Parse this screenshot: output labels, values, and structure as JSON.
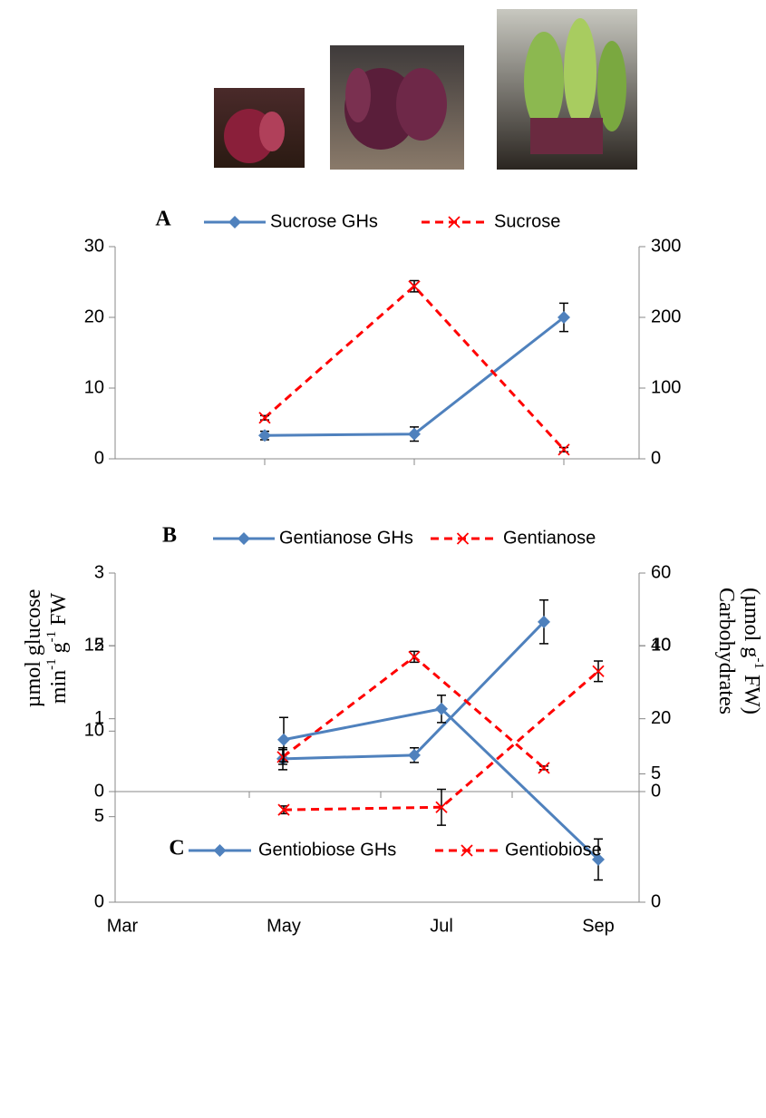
{
  "chart_data": [
    {
      "type": "line",
      "panel_label": "A",
      "categories": [
        null,
        null,
        null,
        null
      ],
      "series": [
        {
          "name": "Sucrose GHs",
          "color": "#4f81bd",
          "marker": "diamond",
          "line_style": "solid",
          "axis": "y",
          "values": [
            null,
            3.3,
            3.5,
            20
          ],
          "errors": [
            null,
            0.6,
            1.0,
            2.0
          ]
        },
        {
          "name": "Sucrose",
          "color": "#ff0000",
          "marker": "x",
          "line_style": "dashed",
          "axis": "y2",
          "values": [
            null,
            58,
            244,
            13
          ],
          "errors": [
            null,
            3,
            8,
            3
          ]
        }
      ],
      "ylim": [
        0,
        30
      ],
      "yticks": [
        0,
        10,
        20,
        30
      ],
      "y2lim": [
        0,
        300
      ],
      "y2ticks": [
        0,
        100,
        200,
        300
      ]
    },
    {
      "type": "line",
      "panel_label": "B",
      "categories": [
        null,
        null,
        null,
        null
      ],
      "series": [
        {
          "name": "Gentianose GHs",
          "color": "#4f81bd",
          "marker": "diamond",
          "line_style": "solid",
          "axis": "y",
          "values": [
            null,
            0.45,
            0.5,
            2.33
          ],
          "errors": [
            null,
            0.15,
            0.1,
            0.3
          ]
        },
        {
          "name": "Gentianose",
          "color": "#ff0000",
          "marker": "x",
          "line_style": "dashed",
          "axis": "y2",
          "values": [
            null,
            9.5,
            37,
            6.5
          ],
          "errors": [
            null,
            2,
            1.5,
            0.5
          ]
        }
      ],
      "ylim": [
        0,
        3
      ],
      "yticks": [
        0,
        1,
        2,
        3
      ],
      "y2lim": [
        0,
        60
      ],
      "y2ticks": [
        0,
        20,
        40,
        60
      ],
      "ylabel_lines": [
        [
          "µmol glucose"
        ],
        [
          "min",
          "-1",
          " g",
          "-1",
          " FW"
        ]
      ],
      "y2label_lines": [
        [
          "Carbohydrates"
        ],
        [
          "(µmol g",
          "-1",
          " FW)"
        ]
      ]
    },
    {
      "type": "line",
      "panel_label": "C",
      "categories": [
        "Mar",
        "May",
        "Jul",
        "Sep"
      ],
      "series": [
        {
          "name": "Gentiobiose GHs",
          "color": "#4f81bd",
          "marker": "diamond",
          "line_style": "solid",
          "axis": "y",
          "values": [
            null,
            9.5,
            11.3,
            2.5
          ],
          "errors": [
            null,
            1.3,
            0.8,
            1.2
          ]
        },
        {
          "name": "Gentiobiose",
          "color": "#ff0000",
          "marker": "x",
          "line_style": "dashed",
          "axis": "y2",
          "values": [
            null,
            3.6,
            3.7,
            9.0
          ],
          "errors": [
            null,
            0.15,
            0.7,
            0.4
          ]
        }
      ],
      "ylim": [
        0,
        15
      ],
      "yticks": [
        0,
        5,
        10,
        15
      ],
      "y2lim": [
        0,
        10
      ],
      "y2ticks": [
        0,
        5,
        10
      ]
    }
  ]
}
